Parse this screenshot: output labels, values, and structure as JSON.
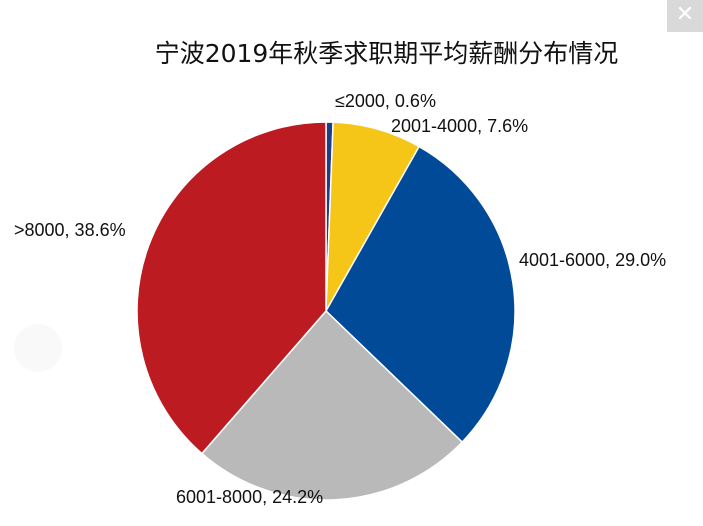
{
  "close_icon": "close-icon",
  "chart_data": {
    "type": "pie",
    "title": "宁波2019年秋季求职期平均薪酬分布情况",
    "slices": [
      {
        "label": "≤2000, 0.6%",
        "value": 0.6,
        "color": "#1f3c88"
      },
      {
        "label": "2001-4000, 7.6%",
        "value": 7.6,
        "color": "#f5c518"
      },
      {
        "label": "4001-6000, 29.0%",
        "value": 29.0,
        "color": "#004a98"
      },
      {
        "label": "6001-8000, 24.2%",
        "value": 24.2,
        "color": "#b9b9b9"
      },
      {
        "label": ">8000, 38.6%",
        "value": 38.6,
        "color": "#bb1b21"
      }
    ],
    "start_angle": "12 o'clock",
    "direction": "clockwise",
    "legend": "none"
  }
}
